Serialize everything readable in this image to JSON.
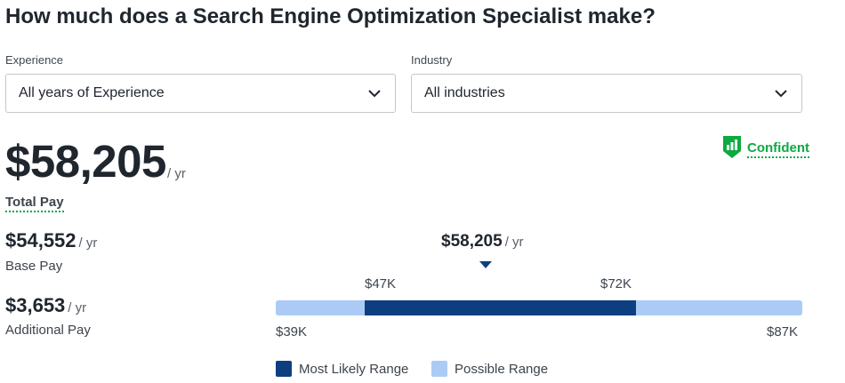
{
  "title": "How much does a Search Engine Optimization Specialist make?",
  "filters": {
    "experience": {
      "label": "Experience",
      "value": "All years of Experience"
    },
    "industry": {
      "label": "Industry",
      "value": "All industries"
    }
  },
  "confidence": {
    "label": "Confident",
    "color": "#0caa41"
  },
  "total_pay": {
    "value": "$58,205",
    "unit": "/ yr",
    "label": "Total Pay"
  },
  "base_pay": {
    "value": "$54,552",
    "unit": "/ yr",
    "label": "Base Pay"
  },
  "additional_pay": {
    "value": "$3,653",
    "unit": "/ yr",
    "label": "Additional Pay"
  },
  "range": {
    "median_value": "$58,205",
    "median_unit": "/ yr",
    "likely_low": "$47K",
    "likely_high": "$72K",
    "min": "$39K",
    "max": "$87K"
  },
  "legend": {
    "most_likely": {
      "label": "Most Likely Range",
      "color": "#0d3e7f"
    },
    "possible": {
      "label": "Possible Range",
      "color": "#abcbf6"
    }
  }
}
